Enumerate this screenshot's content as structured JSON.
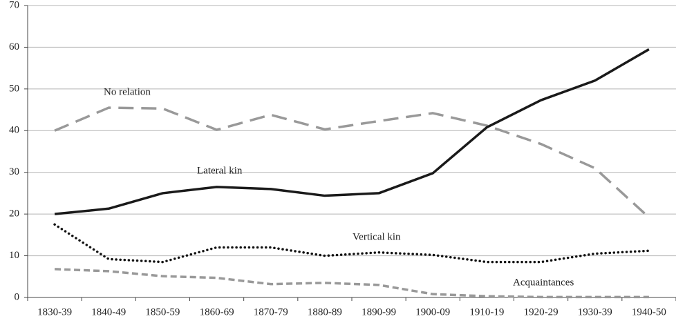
{
  "chart_data": {
    "type": "line",
    "categories": [
      "1830-39",
      "1840-49",
      "1850-59",
      "1860-69",
      "1870-79",
      "1880-89",
      "1890-99",
      "1900-09",
      "1910-19",
      "1920-29",
      "1930-39",
      "1940-50"
    ],
    "series": [
      {
        "name": "No relation",
        "color": "#999999",
        "style": "long-dash",
        "values": [
          40,
          45.5,
          45.3,
          40.2,
          43.8,
          40.3,
          42.3,
          44.2,
          41.2,
          36.8,
          31.0,
          19.2
        ]
      },
      {
        "name": "Lateral kin",
        "color": "#1a1a1a",
        "style": "solid",
        "values": [
          20.0,
          21.3,
          25.0,
          26.5,
          26.0,
          24.4,
          25.0,
          29.8,
          40.8,
          47.3,
          52.0,
          59.5
        ]
      },
      {
        "name": "Vertical kin",
        "color": "#111111",
        "style": "dotted",
        "values": [
          17.5,
          9.2,
          8.5,
          12.0,
          12.0,
          10.0,
          10.8,
          10.2,
          8.5,
          8.5,
          10.5,
          11.2
        ]
      },
      {
        "name": "Acquaintances",
        "color": "#999999",
        "style": "short-dash",
        "values": [
          6.8,
          6.3,
          5.1,
          4.7,
          3.2,
          3.5,
          3.0,
          0.8,
          0.3,
          0.1,
          0.1,
          0.1
        ]
      }
    ],
    "ylim": [
      0,
      70
    ],
    "yticks": [
      0,
      10,
      20,
      30,
      40,
      50,
      60,
      70
    ],
    "grid": true
  }
}
